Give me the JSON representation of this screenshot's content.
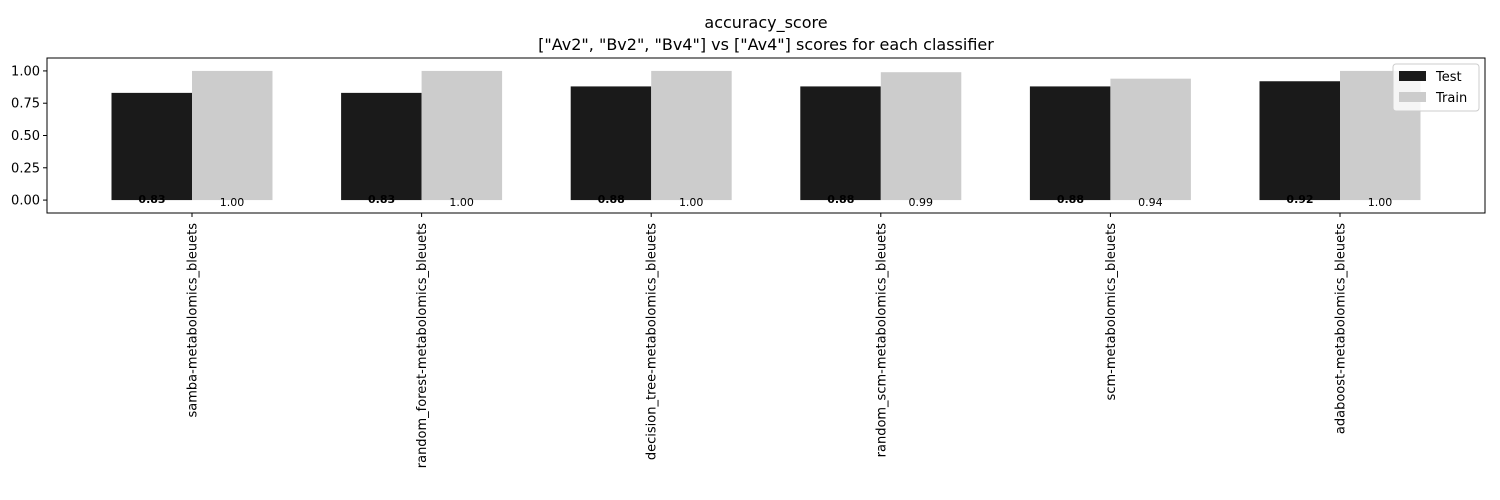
{
  "chart_data": {
    "type": "bar",
    "title": "accuracy_score",
    "subtitle": "[\"Av2\", \"Bv2\", \"Bv4\"] vs [\"Av4\"] scores for each classifier",
    "categories": [
      "samba-metabolomics_bleuets",
      "random_forest-metabolomics_bleuets",
      "decision_tree-metabolomics_bleuets",
      "random_scm-metabolomics_bleuets",
      "scm-metabolomics_bleuets",
      "adaboost-metabolomics_bleuets"
    ],
    "series": [
      {
        "name": "Test",
        "color": "#1a1a1a",
        "values": [
          0.83,
          0.83,
          0.88,
          0.88,
          0.88,
          0.92
        ],
        "labels": [
          "0.83",
          "0.83",
          "0.88",
          "0.88",
          "0.88",
          "0.92"
        ]
      },
      {
        "name": "Train",
        "color": "#cccccc",
        "values": [
          1.0,
          1.0,
          1.0,
          0.99,
          0.94,
          1.0
        ],
        "labels": [
          "1.00",
          "1.00",
          "1.00",
          "0.99",
          "0.94",
          "1.00"
        ]
      }
    ],
    "ylim": [
      -0.1,
      1.1
    ],
    "yticks": [
      0.0,
      0.25,
      0.5,
      0.75,
      1.0
    ],
    "ytick_labels": [
      "0.00",
      "0.25",
      "0.50",
      "0.75",
      "1.00"
    ],
    "xlabel": "",
    "ylabel": "",
    "grid": false,
    "legend_position": "top-right"
  }
}
